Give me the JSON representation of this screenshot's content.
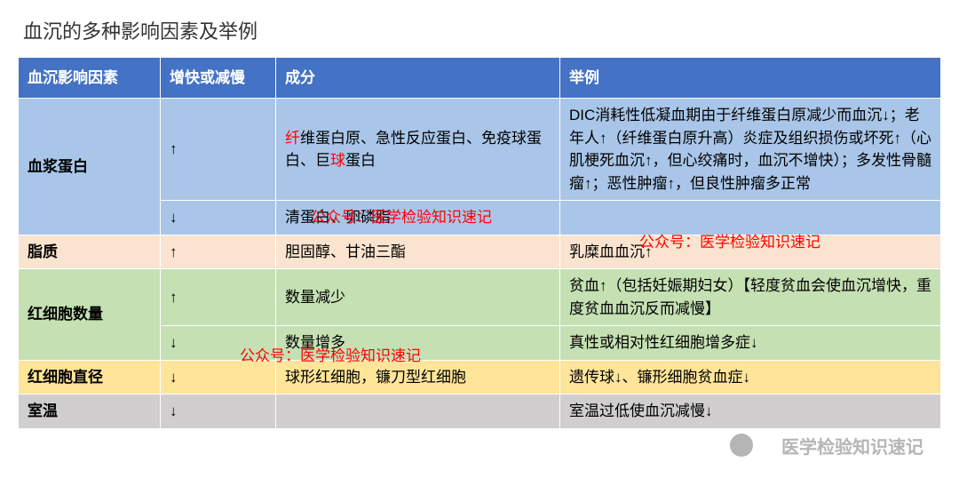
{
  "title": "血沉的多种影响因素及举例",
  "columns": [
    "血沉影响因素",
    "增快或减慢",
    "成分",
    "举例"
  ],
  "colors": {
    "header_bg": "#4472c4",
    "header_fg": "#ffffff",
    "row_blue": "#a9c6e8",
    "row_orange": "#fbe4cf",
    "row_green": "#c5e0b3",
    "row_yellow": "#ffe599",
    "row_grey": "#d0cece",
    "emphasis": "#ff0000",
    "border": "#ffffff"
  },
  "rows": [
    {
      "factor": "血浆蛋白",
      "rowspan": 2,
      "bg": "row-blue",
      "sub": [
        {
          "direction": "↑",
          "component_parts": [
            {
              "t": "纤",
              "red": true
            },
            {
              "t": "维蛋白原、急性反应蛋白、免疫球蛋白、巨"
            },
            {
              "t": "球",
              "red": true
            },
            {
              "t": "蛋白"
            }
          ],
          "example": "DIC消耗性低凝血期由于纤维蛋白原减少而血沉↓；老年人↑（纤维蛋白原升高）炎症及组织损伤或坏死↑（心肌梗死血沉↑，但心绞痛时，血沉不增快）；多发性骨髓瘤↑；恶性肿瘤↑，但良性肿瘤多正常"
        },
        {
          "direction": "↓",
          "component": "清蛋白、卵磷脂",
          "example": ""
        }
      ]
    },
    {
      "factor": "脂质",
      "bg": "row-orange",
      "sub": [
        {
          "direction": "↑",
          "component": "胆固醇、甘油三酯",
          "example": "乳糜血血沉↑"
        }
      ]
    },
    {
      "factor": "红细胞数量",
      "rowspan": 2,
      "bg": "row-green",
      "sub": [
        {
          "direction": "↑",
          "component": "数量减少",
          "example": "贫血↑（包括妊娠期妇女）【轻度贫血会使血沉增快，重度贫血血沉反而减慢】"
        },
        {
          "direction": "↓",
          "component": "数量增多",
          "example": "真性或相对性红细胞增多症↓"
        }
      ]
    },
    {
      "factor": "红细胞直径",
      "bg": "row-yellow",
      "sub": [
        {
          "direction": "↓",
          "component": "球形红细胞，镰刀型红细胞",
          "example": "遗传球↓、镰形细胞贫血症↓"
        }
      ]
    },
    {
      "factor": "室温",
      "bg": "row-grey",
      "sub": [
        {
          "direction": "↓",
          "component": "",
          "example": "室温过低使血沉减慢↓"
        }
      ]
    }
  ],
  "watermarks": {
    "red": "公众号：医学检验知识速记",
    "grey": "医学检验知识速记"
  }
}
